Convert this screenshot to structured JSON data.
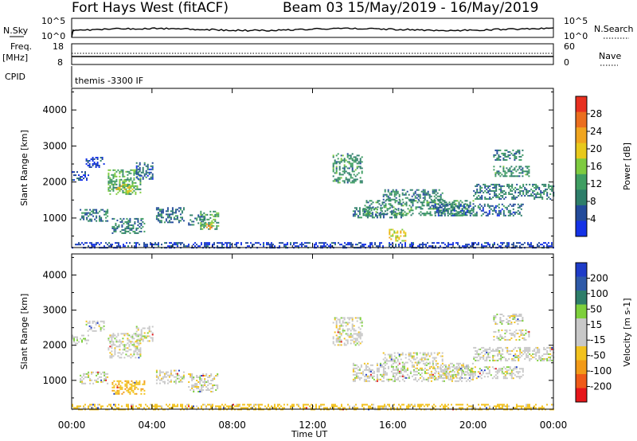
{
  "header": {
    "station": "Fort Hays West (fitACF)",
    "beam_date": "Beam 03 15/May/2019 - 16/May/2019"
  },
  "strips": {
    "sky": {
      "left_label": "N.Sky",
      "right_label": "N.Search",
      "ticks": [
        "10^5",
        "10^0"
      ]
    },
    "freq": {
      "left_label_1": "Freq.",
      "left_label_2": "[MHz]",
      "right_label": "Nave",
      "left_ticks": [
        "18",
        "8"
      ],
      "right_ticks": [
        "60",
        "0"
      ]
    },
    "cpid": {
      "left_label": "CPID",
      "mode": "themis -3300 IF"
    }
  },
  "colors": {
    "power": [
      "#1432e6",
      "#234b9b",
      "#2e7e6a",
      "#3f9e62",
      "#7ecb3f",
      "#e8c91c",
      "#f0a51f",
      "#eb6e1e",
      "#e83020"
    ],
    "velocity": [
      "#e6161a",
      "#ef5a18",
      "#f29a18",
      "#f2c21e",
      "#c8c8c8",
      "#c8c8c8",
      "#7ed03c",
      "#2e7e6a",
      "#2e5aa8",
      "#1e3cc8"
    ]
  },
  "chart_data": [
    {
      "name": "power",
      "type": "heatmap",
      "xlabel": "Time UT",
      "ylabel": "Slant Range [km]",
      "colorbar_label": "Power [dB]",
      "colorbar_ticks": [
        "4",
        "8",
        "12",
        "16",
        "20",
        "24",
        "28"
      ],
      "colorbar_range": [
        0,
        32
      ],
      "x_range_hours": [
        0,
        24
      ],
      "x_ticks": [
        "00:00",
        "04:00",
        "08:00",
        "12:00",
        "16:00",
        "20:00",
        "00:00"
      ],
      "y_range_km": [
        180,
        4600
      ],
      "y_ticks": [
        1000,
        2000,
        3000,
        4000
      ],
      "echo_regions": [
        {
          "t0": 0.0,
          "t1": 0.8,
          "r0": 2050,
          "r1": 2300,
          "v": 6
        },
        {
          "t0": 0.7,
          "t1": 1.6,
          "r0": 2400,
          "r1": 2700,
          "v": 5
        },
        {
          "t0": 0.4,
          "t1": 1.8,
          "r0": 900,
          "r1": 1250,
          "v": 9
        },
        {
          "t0": 1.8,
          "t1": 3.4,
          "r0": 1650,
          "r1": 2350,
          "v": 15
        },
        {
          "t0": 2.2,
          "t1": 3.0,
          "r0": 1700,
          "r1": 1950,
          "v": 20
        },
        {
          "t0": 2.0,
          "t1": 3.6,
          "r0": 600,
          "r1": 1000,
          "v": 10
        },
        {
          "t0": 3.2,
          "t1": 4.0,
          "r0": 2100,
          "r1": 2550,
          "v": 8
        },
        {
          "t0": 4.2,
          "t1": 5.6,
          "r0": 900,
          "r1": 1300,
          "v": 9
        },
        {
          "t0": 5.8,
          "t1": 6.6,
          "r0": 800,
          "r1": 1100,
          "v": 10
        },
        {
          "t0": 6.4,
          "t1": 7.3,
          "r0": 700,
          "r1": 1200,
          "v": 14
        },
        {
          "t0": 6.7,
          "t1": 7.0,
          "r0": 700,
          "r1": 850,
          "v": 26
        },
        {
          "t0": 13.0,
          "t1": 14.5,
          "r0": 2000,
          "r1": 2800,
          "v": 12
        },
        {
          "t0": 14.0,
          "t1": 16.5,
          "r0": 1000,
          "r1": 1300,
          "v": 10
        },
        {
          "t0": 14.5,
          "t1": 20.0,
          "r0": 1100,
          "r1": 1500,
          "v": 12
        },
        {
          "t0": 15.5,
          "t1": 18.5,
          "r0": 1500,
          "r1": 1800,
          "v": 10
        },
        {
          "t0": 18.0,
          "t1": 22.5,
          "r0": 1050,
          "r1": 1400,
          "v": 8
        },
        {
          "t0": 20.0,
          "t1": 24.0,
          "r0": 1550,
          "r1": 1950,
          "v": 10
        },
        {
          "t0": 21.0,
          "t1": 22.8,
          "r0": 2150,
          "r1": 2450,
          "v": 12
        },
        {
          "t0": 21.0,
          "t1": 22.5,
          "r0": 2600,
          "r1": 2900,
          "v": 10
        },
        {
          "t0": 15.8,
          "t1": 16.6,
          "r0": 350,
          "r1": 700,
          "v": 22
        },
        {
          "t0": 0.0,
          "t1": 24.0,
          "r0": 180,
          "r1": 330,
          "v": 4
        }
      ]
    },
    {
      "name": "velocity",
      "type": "heatmap",
      "xlabel": "Time UT",
      "ylabel": "Slant Range [km]",
      "colorbar_label": "Velocity [m s-1]",
      "colorbar_ticks": [
        "-200",
        "-100",
        "-50",
        "-15",
        "15",
        "50",
        "100",
        "200"
      ],
      "colorbar_range": [
        -250,
        250
      ],
      "x_range_hours": [
        0,
        24
      ],
      "x_ticks": [
        "00:00",
        "04:00",
        "08:00",
        "12:00",
        "16:00",
        "20:00",
        "00:00"
      ],
      "y_range_km": [
        180,
        4600
      ],
      "y_ticks": [
        1000,
        2000,
        3000,
        4000
      ],
      "echo_regions": [
        {
          "t0": 0.0,
          "t1": 0.8,
          "r0": 2050,
          "r1": 2300,
          "v": 0
        },
        {
          "t0": 0.7,
          "t1": 1.6,
          "r0": 2400,
          "r1": 2700,
          "v": 0
        },
        {
          "t0": 0.4,
          "t1": 1.8,
          "r0": 900,
          "r1": 1250,
          "v": 0
        },
        {
          "t0": 1.8,
          "t1": 3.4,
          "r0": 1650,
          "r1": 2350,
          "v": 0
        },
        {
          "t0": 2.0,
          "t1": 3.6,
          "r0": 600,
          "r1": 1000,
          "v": -40
        },
        {
          "t0": 3.2,
          "t1": 4.0,
          "r0": 2100,
          "r1": 2550,
          "v": 0
        },
        {
          "t0": 4.2,
          "t1": 5.6,
          "r0": 900,
          "r1": 1300,
          "v": 0
        },
        {
          "t0": 5.8,
          "t1": 7.3,
          "r0": 700,
          "r1": 1200,
          "v": 0
        },
        {
          "t0": 13.0,
          "t1": 14.5,
          "r0": 2000,
          "r1": 2800,
          "v": 0
        },
        {
          "t0": 14.0,
          "t1": 20.0,
          "r0": 1000,
          "r1": 1500,
          "v": 0
        },
        {
          "t0": 15.5,
          "t1": 18.5,
          "r0": 1500,
          "r1": 1800,
          "v": 0
        },
        {
          "t0": 18.0,
          "t1": 22.5,
          "r0": 1050,
          "r1": 1400,
          "v": 0
        },
        {
          "t0": 20.0,
          "t1": 24.0,
          "r0": 1550,
          "r1": 1950,
          "v": 0
        },
        {
          "t0": 21.0,
          "t1": 22.8,
          "r0": 2150,
          "r1": 2450,
          "v": 0
        },
        {
          "t0": 21.0,
          "t1": 22.5,
          "r0": 2600,
          "r1": 2900,
          "v": 0
        },
        {
          "t0": 0.0,
          "t1": 24.0,
          "r0": 180,
          "r1": 330,
          "v": -30
        }
      ]
    }
  ]
}
